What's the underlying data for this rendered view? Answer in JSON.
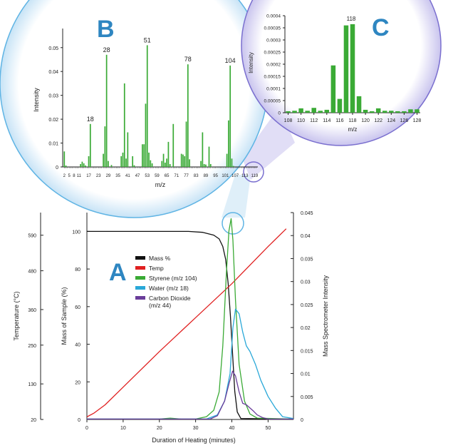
{
  "chart_data": [
    {
      "panel": "A",
      "panel_label": "A",
      "type": "line",
      "xlabel": "Duration of Heating (minutes)",
      "xlim": [
        0,
        57
      ],
      "x_ticks": [
        "0",
        "10",
        "20",
        "30",
        "40",
        "50"
      ],
      "y_axes": {
        "temperature": {
          "label": "Temperature (°C)",
          "ticks": [
            "20",
            "130",
            "250",
            "360",
            "480",
            "590"
          ],
          "ylim": [
            20,
            660
          ]
        },
        "mass": {
          "label": "Mass of Sample (%)",
          "ticks": [
            "0",
            "20",
            "40",
            "60",
            "80",
            "100"
          ],
          "ylim": [
            0,
            110
          ]
        },
        "intensity": {
          "label": "Mass Spectrometer Intensity",
          "ticks": [
            "0",
            "0.005",
            "0.01",
            "0.015",
            "0.02",
            "0.025",
            "0.03",
            "0.035",
            "0.04",
            "0.045"
          ],
          "ylim": [
            0,
            0.045
          ]
        }
      },
      "legend": [
        {
          "name": "Mass %",
          "color": "#111111"
        },
        {
          "name": "Temp",
          "color": "#e02020"
        },
        {
          "name": "Styrene (m/z 104)",
          "color": "#3aaa35"
        },
        {
          "name": "Water (m/z 18)",
          "color": "#2aa8d8"
        },
        {
          "name": "Carbon Dioxide\n(m/z 44)",
          "color": "#6a3d9a"
        }
      ],
      "series": [
        {
          "name": "Mass %",
          "axis": "mass",
          "color": "#111111",
          "x": [
            0,
            10,
            20,
            28,
            32,
            35,
            36.5,
            37.5,
            38.3,
            39,
            39.6,
            40.2,
            40.8,
            41.5,
            42.5,
            57
          ],
          "y": [
            100,
            100,
            100,
            100,
            99.5,
            98,
            96,
            92,
            85,
            72,
            55,
            35,
            15,
            4,
            0.5,
            0.2
          ]
        },
        {
          "name": "Temp",
          "axis": "temperature",
          "color": "#e02020",
          "x": [
            0,
            2,
            5,
            10,
            20,
            30,
            40,
            50,
            55
          ],
          "y": [
            28,
            40,
            65,
            120,
            230,
            335,
            440,
            555,
            610
          ]
        },
        {
          "name": "Styrene (m/z 104)",
          "axis": "intensity",
          "color": "#3aaa35",
          "x": [
            0,
            20,
            23,
            26,
            30,
            33,
            35,
            36.5,
            37.5,
            38.5,
            39.2,
            39.8,
            40.3,
            41,
            42,
            43.5,
            45,
            47,
            57
          ],
          "y": [
            0.0001,
            0.0001,
            0.0003,
            0.0001,
            0.0001,
            0.0006,
            0.002,
            0.006,
            0.016,
            0.032,
            0.041,
            0.0437,
            0.039,
            0.026,
            0.012,
            0.004,
            0.0012,
            0.0003,
            0.0001
          ]
        },
        {
          "name": "Water (m/z 18)",
          "axis": "intensity",
          "color": "#2aa8d8",
          "x": [
            0,
            33,
            36,
            38,
            39.5,
            40.3,
            41,
            42,
            43,
            44,
            45,
            46.5,
            48,
            50,
            52,
            54,
            57
          ],
          "y": [
            0.0001,
            0.0001,
            0.001,
            0.004,
            0.01,
            0.02,
            0.024,
            0.023,
            0.019,
            0.016,
            0.0148,
            0.012,
            0.0085,
            0.005,
            0.0025,
            0.0006,
            0.0002
          ]
        },
        {
          "name": "Carbon Dioxide\n(m/z 44)",
          "axis": "intensity",
          "color": "#6a3d9a",
          "x": [
            0,
            34,
            36,
            38,
            39.3,
            40.2,
            41,
            42,
            43,
            44,
            45,
            46,
            47,
            48.5,
            50,
            57
          ],
          "y": [
            0.0001,
            0.0001,
            0.0008,
            0.004,
            0.008,
            0.0105,
            0.0095,
            0.006,
            0.0035,
            0.0032,
            0.0025,
            0.0018,
            0.001,
            0.0004,
            0.0001,
            0.0001
          ]
        }
      ]
    },
    {
      "panel": "B",
      "panel_label": "B",
      "type": "bar",
      "xlabel": "m/z",
      "ylabel": "Intensity",
      "xlim": [
        1,
        121
      ],
      "ylim": [
        0,
        0.058
      ],
      "y_ticks": [
        "0",
        "0.01",
        "0.02",
        "0.03",
        "0.04",
        "0.05"
      ],
      "x_ticks": [
        "2",
        "5",
        "8",
        "11",
        "17",
        "23",
        "29",
        "35",
        "41",
        "47",
        "53",
        "59",
        "65",
        "71",
        "77",
        "83",
        "89",
        "95",
        "101",
        "107",
        "113",
        "119"
      ],
      "peak_labels": [
        "18",
        "28",
        "51",
        "78",
        "104"
      ],
      "bars": [
        {
          "x": 2,
          "y": 0.0065
        },
        {
          "x": 3,
          "y": 0.0006
        },
        {
          "x": 12,
          "y": 0.0012
        },
        {
          "x": 13,
          "y": 0.0022
        },
        {
          "x": 14,
          "y": 0.0015
        },
        {
          "x": 15,
          "y": 0.0006
        },
        {
          "x": 17,
          "y": 0.0045
        },
        {
          "x": 18,
          "y": 0.018
        },
        {
          "x": 26,
          "y": 0.0055
        },
        {
          "x": 27,
          "y": 0.017
        },
        {
          "x": 28,
          "y": 0.047
        },
        {
          "x": 29,
          "y": 0.0025
        },
        {
          "x": 31,
          "y": 0.0008
        },
        {
          "x": 37,
          "y": 0.0045
        },
        {
          "x": 38,
          "y": 0.006
        },
        {
          "x": 39,
          "y": 0.035
        },
        {
          "x": 40,
          "y": 0.0035
        },
        {
          "x": 41,
          "y": 0.0145
        },
        {
          "x": 44,
          "y": 0.0045
        },
        {
          "x": 45,
          "y": 0.0007
        },
        {
          "x": 50,
          "y": 0.0095
        },
        {
          "x": 51,
          "y": 0.0095
        },
        {
          "x": 52,
          "y": 0.0265
        },
        {
          "x": 53,
          "y": 0.051
        },
        {
          "x": 54,
          "y": 0.006
        },
        {
          "x": 55,
          "y": 0.0028
        },
        {
          "x": 56,
          "y": 0.0015
        },
        {
          "x": 62,
          "y": 0.0025
        },
        {
          "x": 63,
          "y": 0.0055
        },
        {
          "x": 64,
          "y": 0.0018
        },
        {
          "x": 65,
          "y": 0.0035
        },
        {
          "x": 66,
          "y": 0.0105
        },
        {
          "x": 67,
          "y": 0.0012
        },
        {
          "x": 69,
          "y": 0.018
        },
        {
          "x": 74,
          "y": 0.0055
        },
        {
          "x": 75,
          "y": 0.0052
        },
        {
          "x": 76,
          "y": 0.0045
        },
        {
          "x": 77,
          "y": 0.019
        },
        {
          "x": 78,
          "y": 0.043
        },
        {
          "x": 79,
          "y": 0.0032
        },
        {
          "x": 86,
          "y": 0.0025
        },
        {
          "x": 87,
          "y": 0.0145
        },
        {
          "x": 88,
          "y": 0.0012
        },
        {
          "x": 89,
          "y": 0.001
        },
        {
          "x": 91,
          "y": 0.0085
        },
        {
          "x": 92,
          "y": 0.0012
        },
        {
          "x": 102,
          "y": 0.0055
        },
        {
          "x": 103,
          "y": 0.0195
        },
        {
          "x": 104,
          "y": 0.0425
        },
        {
          "x": 105,
          "y": 0.0035
        },
        {
          "x": 106,
          "y": 0.0004
        }
      ]
    },
    {
      "panel": "C",
      "panel_label": "C",
      "type": "bar",
      "xlabel": "m/z",
      "ylabel": "Intensity",
      "xlim": [
        107.5,
        128.5
      ],
      "ylim": [
        0,
        0.0004
      ],
      "y_ticks": [
        "0",
        "0.00005",
        "0.0001",
        "0.00015",
        "0.0002",
        "0.00025",
        "0.0003",
        "0.00035",
        "0.0004"
      ],
      "x_ticks": [
        "108",
        "110",
        "112",
        "114",
        "116",
        "118",
        "120",
        "122",
        "124",
        "126",
        "128"
      ],
      "peak_labels": [
        "118"
      ],
      "bars": [
        {
          "x": 108,
          "y": 6e-06
        },
        {
          "x": 109,
          "y": 8e-06
        },
        {
          "x": 110,
          "y": 1.8e-05
        },
        {
          "x": 111,
          "y": 8e-06
        },
        {
          "x": 112,
          "y": 2e-05
        },
        {
          "x": 113,
          "y": 8e-06
        },
        {
          "x": 114,
          "y": 1.2e-05
        },
        {
          "x": 115,
          "y": 0.000195
        },
        {
          "x": 116,
          "y": 5.7e-05
        },
        {
          "x": 117,
          "y": 0.00036
        },
        {
          "x": 118,
          "y": 0.000365
        },
        {
          "x": 119,
          "y": 6.8e-05
        },
        {
          "x": 120,
          "y": 1.2e-05
        },
        {
          "x": 121,
          "y": 6e-06
        },
        {
          "x": 122,
          "y": 1.8e-05
        },
        {
          "x": 123,
          "y": 8e-06
        },
        {
          "x": 124,
          "y": 8e-06
        },
        {
          "x": 125,
          "y": 6e-06
        },
        {
          "x": 126,
          "y": 6e-06
        },
        {
          "x": 127,
          "y": 1.4e-05
        },
        {
          "x": 128,
          "y": 1.4e-05
        }
      ]
    }
  ]
}
